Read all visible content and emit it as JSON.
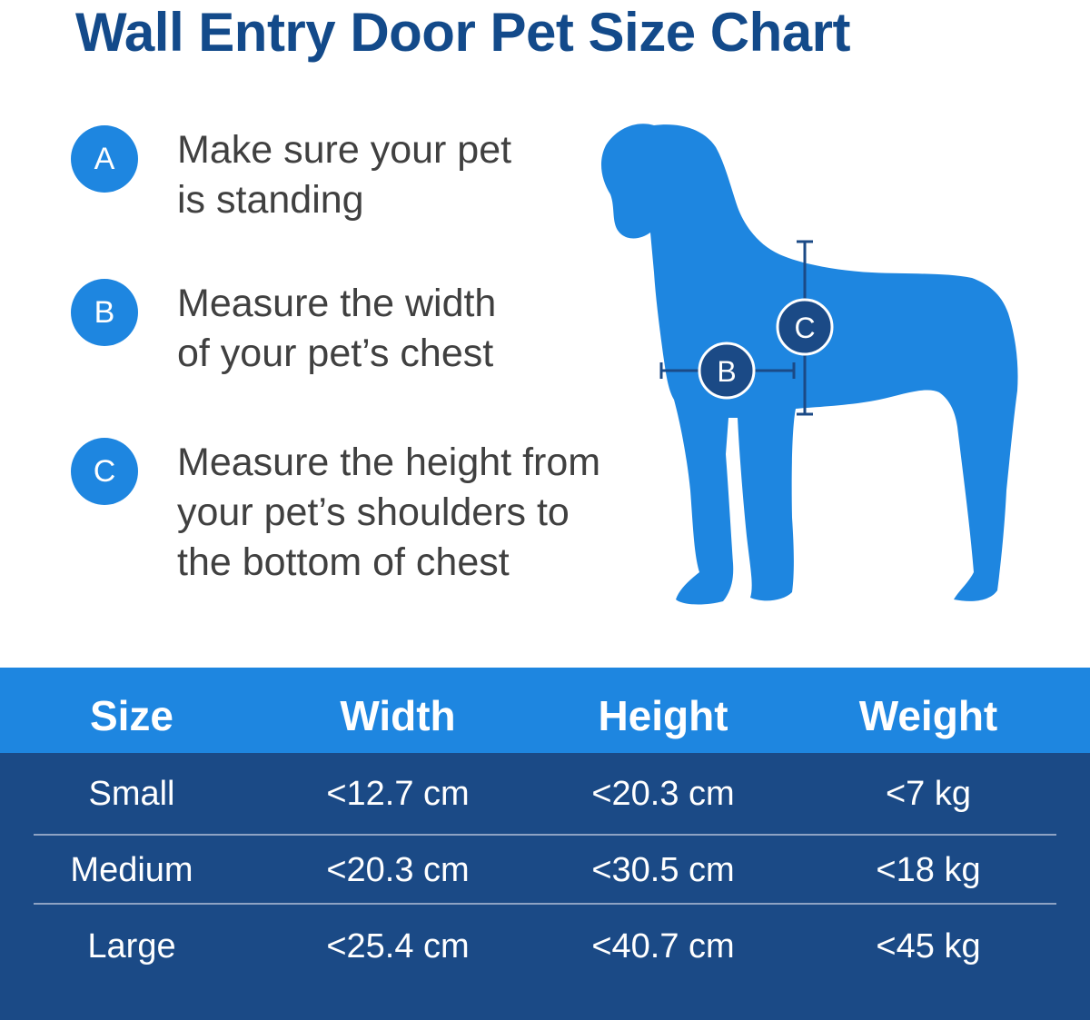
{
  "title": "Wall Entry Door Pet Size Chart",
  "steps": [
    {
      "letter": "A",
      "line1": "Make sure your pet",
      "line2": "is standing",
      "line3": ""
    },
    {
      "letter": "B",
      "line1": "Measure the width",
      "line2": "of your pet’s chest",
      "line3": ""
    },
    {
      "letter": "C",
      "line1": "Measure the height from",
      "line2": "your pet’s shoulders to",
      "line3": "the bottom of chest"
    }
  ],
  "diagram": {
    "width_marker": "B",
    "height_marker": "C"
  },
  "table": {
    "headers": [
      "Size",
      "Width",
      "Height",
      "Weight"
    ],
    "rows": [
      [
        "Small",
        "<12.7 cm",
        "<20.3 cm",
        "<7 kg"
      ],
      [
        "Medium",
        "<20.3 cm",
        "<30.5 cm",
        "<18 kg"
      ],
      [
        "Large",
        "<25.4 cm",
        "<40.7 cm",
        "<45 kg"
      ]
    ]
  },
  "colors": {
    "title": "#134a8a",
    "accent_blue": "#1e86e0",
    "dark_navy": "#1b4a86",
    "body_text": "#404040",
    "dog": "#1e86e0"
  },
  "icons": [
    "dog-silhouette-icon"
  ]
}
